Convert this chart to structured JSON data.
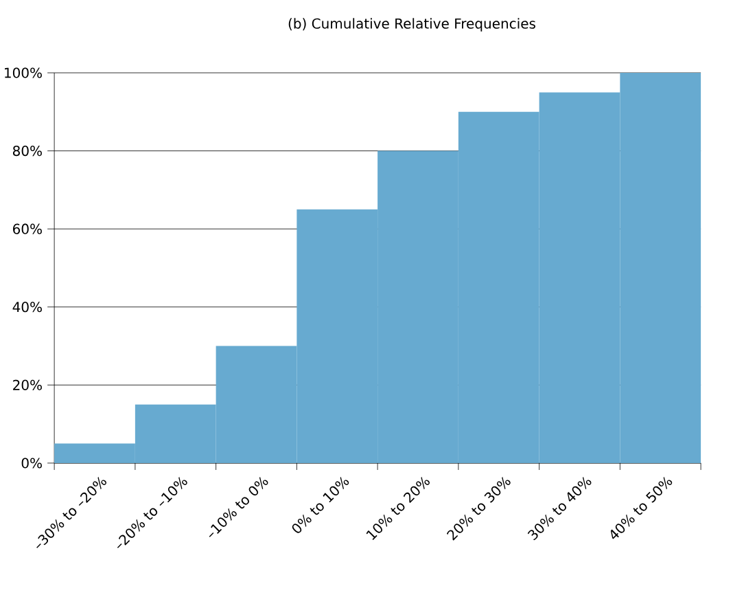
{
  "chart_data": {
    "type": "bar",
    "title": "(b) Cumulative Relative Frequencies",
    "categories": [
      "–30% to –20%",
      "–20% to –10%",
      "–10% to 0%",
      "0% to 10%",
      "10% to 20%",
      "20% to 30%",
      "30% to 40%",
      "40% to 50%"
    ],
    "values": [
      5,
      15,
      30,
      65,
      80,
      90,
      95,
      100
    ],
    "color": "#67aad0",
    "ylim": [
      0,
      100
    ],
    "yticks": [
      {
        "value": 0,
        "label": "0%"
      },
      {
        "value": 20,
        "label": "20%"
      },
      {
        "value": 40,
        "label": "40%"
      },
      {
        "value": 60,
        "label": "60%"
      },
      {
        "value": 80,
        "label": "80%"
      },
      {
        "value": 100,
        "label": "100%"
      }
    ],
    "grid": "y"
  }
}
